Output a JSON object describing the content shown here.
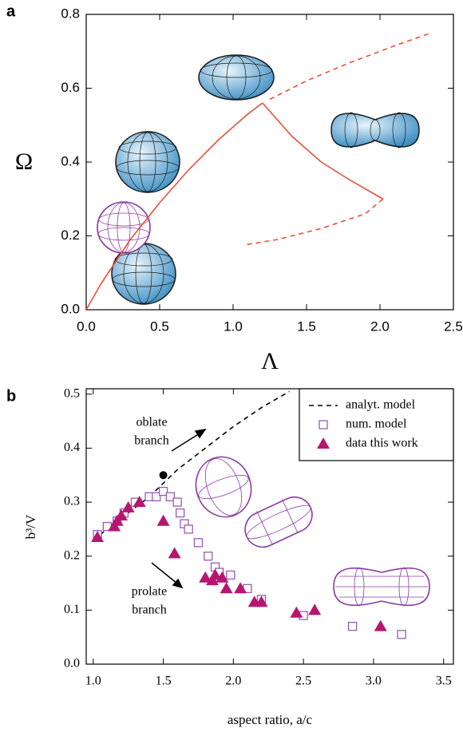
{
  "chart_data": [
    {
      "type": "line",
      "panel_label": "a",
      "x_label": "Λ",
      "y_label": "Ω",
      "xlim": [
        0,
        2.5
      ],
      "ylim": [
        0,
        0.8
      ],
      "xticks": [
        {
          "value": 0,
          "label": "0.0"
        },
        0.5,
        {
          "value": 1,
          "label": "1.0"
        },
        1.5,
        {
          "value": 2,
          "label": "2.0"
        },
        2.5
      ],
      "yticks": [
        {
          "value": 0,
          "label": "0.0"
        },
        0.2,
        0.4,
        0.6,
        0.8
      ],
      "series": [
        {
          "style": "solid",
          "color": "#e8503a",
          "x": [
            0,
            0.1,
            0.3,
            0.5,
            0.7,
            0.9,
            1.1,
            1.2
          ],
          "y": [
            0,
            0.07,
            0.19,
            0.29,
            0.38,
            0.46,
            0.53,
            0.56
          ]
        },
        {
          "style": "solid",
          "color": "#e8503a",
          "x": [
            1.2,
            1.4,
            1.6,
            1.8,
            2.02
          ],
          "y": [
            0.56,
            0.47,
            0.4,
            0.35,
            0.3
          ]
        },
        {
          "style": "dashed",
          "color": "#e8503a",
          "x": [
            2.02,
            1.9,
            1.6,
            1.3,
            1.07
          ],
          "y": [
            0.3,
            0.26,
            0.22,
            0.19,
            0.175
          ]
        },
        {
          "style": "dashed",
          "color": "#e8503a",
          "x": [
            1.25,
            1.5,
            1.8,
            2.1,
            2.35
          ],
          "y": [
            0.57,
            0.62,
            0.67,
            0.715,
            0.75
          ]
        }
      ]
    },
    {
      "type": "scatter",
      "panel_label": "b",
      "x_label": "aspect ratio, a/c",
      "y_label": "b³/V",
      "xlim": [
        0.95,
        3.57
      ],
      "ylim": [
        0,
        0.51
      ],
      "xticks": [
        {
          "value": 1,
          "label": "1.0"
        },
        1.5,
        {
          "value": 2,
          "label": "2.0"
        },
        2.5,
        {
          "value": 3,
          "label": "3.0"
        },
        3.5
      ],
      "yticks": [
        {
          "value": 0,
          "label": "0.0"
        },
        0.1,
        0.2,
        0.3,
        0.4,
        0.5
      ],
      "annotations": [
        [
          "oblate",
          "branch"
        ],
        [
          "prolate",
          "branch"
        ]
      ],
      "marker": {
        "x": 1.5,
        "y": 0.35,
        "color": "#000000"
      },
      "series": [
        {
          "name": "analyt. model",
          "style": "dashed",
          "color": "#000000",
          "x": [
            1.05,
            1.2,
            1.4,
            1.6,
            1.8,
            2.0,
            2.2,
            2.4
          ],
          "y": [
            0.24,
            0.27,
            0.31,
            0.36,
            0.4,
            0.44,
            0.475,
            0.505
          ]
        },
        {
          "name": "num. model",
          "style": "square",
          "color": "#9b59b6",
          "x": [
            1.03,
            1.1,
            1.17,
            1.22,
            1.3,
            1.4,
            1.45,
            1.5,
            1.55,
            1.6,
            1.62,
            1.65,
            1.68,
            1.75,
            1.82,
            1.87,
            1.9,
            1.98,
            2.1,
            2.2,
            2.5,
            2.85,
            3.2
          ],
          "y": [
            0.24,
            0.255,
            0.265,
            0.28,
            0.3,
            0.31,
            0.31,
            0.32,
            0.31,
            0.3,
            0.28,
            0.26,
            0.25,
            0.225,
            0.2,
            0.18,
            0.17,
            0.165,
            0.14,
            0.12,
            0.09,
            0.07,
            0.055
          ]
        },
        {
          "name": "data this work",
          "style": "triangle",
          "color": "#b5176f",
          "x": [
            1.03,
            1.15,
            1.17,
            1.2,
            1.25,
            1.33,
            1.5,
            1.58,
            1.8,
            1.85,
            1.87,
            1.92,
            1.95,
            2.05,
            2.15,
            2.2,
            2.45,
            2.58,
            3.05
          ],
          "y": [
            0.235,
            0.255,
            0.265,
            0.275,
            0.29,
            0.3,
            0.265,
            0.205,
            0.16,
            0.155,
            0.165,
            0.16,
            0.14,
            0.14,
            0.115,
            0.115,
            0.095,
            0.1,
            0.07
          ]
        }
      ]
    }
  ]
}
